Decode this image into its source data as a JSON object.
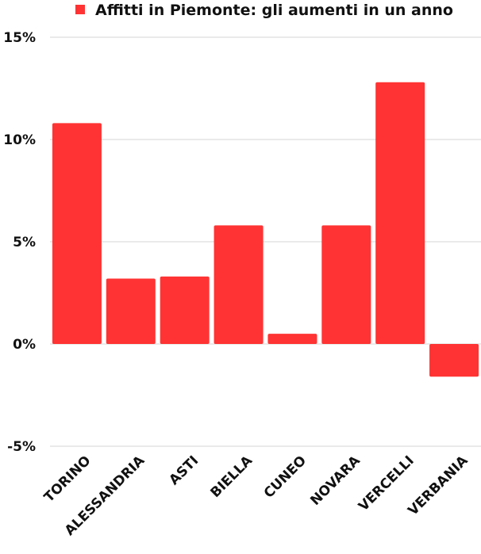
{
  "chart_data": {
    "type": "bar",
    "series": [
      {
        "name": "Affitti in Piemonte: gli aumenti in un anno",
        "color": "#ff3333",
        "values": [
          10.8,
          3.2,
          3.3,
          5.8,
          0.5,
          5.8,
          12.8,
          -1.6
        ]
      }
    ],
    "categories": [
      "TORINO",
      "ALESSANDRIA",
      "ASTI",
      "BIELLA",
      "CUNEO",
      "NOVARA",
      "VERCELLI",
      "VERBANIA"
    ],
    "y_ticks": [
      "15%",
      "10%",
      "5%",
      "0%",
      "-5%"
    ],
    "ylim": [
      -5,
      15
    ],
    "grid": true,
    "legend_position": "top"
  }
}
